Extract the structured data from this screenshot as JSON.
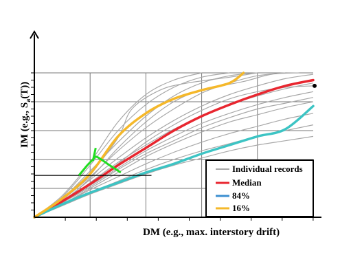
{
  "chart_data": {
    "type": "line",
    "xlabel_main": "DM (e.g., max. interstory drift)",
    "ylabel_parts": {
      "pre": "IM (e.g., S",
      "sub": "a",
      "post": "(T))"
    },
    "x_range": [
      0,
      1
    ],
    "y_range": [
      0,
      1
    ],
    "grid": true,
    "legend_position": "bottom-right",
    "colors": {
      "records": "#a8a8a8",
      "median": "#e8262f",
      "p84": "#3cc4c4",
      "p16": "#f5b82a",
      "distribution": "#22dd22"
    },
    "series": [
      {
        "name": "Individual records",
        "key": "records"
      },
      {
        "name": "Median",
        "key": "median",
        "points": [
          [
            0,
            0
          ],
          [
            0.1,
            0.11
          ],
          [
            0.2,
            0.23
          ],
          [
            0.3,
            0.36
          ],
          [
            0.4,
            0.48
          ],
          [
            0.5,
            0.6
          ],
          [
            0.6,
            0.7
          ],
          [
            0.7,
            0.78
          ],
          [
            0.8,
            0.85
          ],
          [
            0.9,
            0.91
          ],
          [
            1.0,
            0.95
          ]
        ]
      },
      {
        "name": "84%",
        "key": "p84",
        "points": [
          [
            0,
            0
          ],
          [
            0.1,
            0.09
          ],
          [
            0.2,
            0.17
          ],
          [
            0.3,
            0.24
          ],
          [
            0.4,
            0.31
          ],
          [
            0.5,
            0.37
          ],
          [
            0.6,
            0.44
          ],
          [
            0.7,
            0.5
          ],
          [
            0.8,
            0.56
          ],
          [
            0.9,
            0.61
          ],
          [
            1.0,
            0.77
          ]
        ]
      },
      {
        "name": "16%",
        "key": "p16",
        "points": [
          [
            0,
            0
          ],
          [
            0.1,
            0.13
          ],
          [
            0.2,
            0.3
          ],
          [
            0.3,
            0.56
          ],
          [
            0.4,
            0.72
          ],
          [
            0.5,
            0.82
          ],
          [
            0.6,
            0.88
          ],
          [
            0.7,
            0.93
          ],
          [
            0.75,
            1.0
          ]
        ]
      }
    ],
    "records": [
      [
        [
          0,
          0
        ],
        [
          0.1,
          0.15
        ],
        [
          0.2,
          0.38
        ],
        [
          0.3,
          0.66
        ],
        [
          0.4,
          0.85
        ],
        [
          0.5,
          0.95
        ],
        [
          0.6,
          1.0
        ]
      ],
      [
        [
          0,
          0
        ],
        [
          0.1,
          0.14
        ],
        [
          0.2,
          0.36
        ],
        [
          0.3,
          0.6
        ],
        [
          0.4,
          0.78
        ],
        [
          0.5,
          0.9
        ],
        [
          0.6,
          0.97
        ],
        [
          0.7,
          1.0
        ]
      ],
      [
        [
          0,
          0
        ],
        [
          0.1,
          0.13
        ],
        [
          0.2,
          0.32
        ],
        [
          0.3,
          0.52
        ],
        [
          0.4,
          0.7
        ],
        [
          0.5,
          0.84
        ],
        [
          0.6,
          0.93
        ],
        [
          0.7,
          0.98
        ],
        [
          0.8,
          1.0
        ]
      ],
      [
        [
          0,
          0
        ],
        [
          0.1,
          0.12
        ],
        [
          0.2,
          0.28
        ],
        [
          0.3,
          0.46
        ],
        [
          0.4,
          0.62
        ],
        [
          0.5,
          0.75
        ],
        [
          0.6,
          0.86
        ],
        [
          0.7,
          0.93
        ],
        [
          0.8,
          0.98
        ],
        [
          0.9,
          1.0
        ]
      ],
      [
        [
          0,
          0
        ],
        [
          0.1,
          0.11
        ],
        [
          0.2,
          0.26
        ],
        [
          0.3,
          0.41
        ],
        [
          0.4,
          0.55
        ],
        [
          0.5,
          0.67
        ],
        [
          0.6,
          0.77
        ],
        [
          0.7,
          0.85
        ],
        [
          0.8,
          0.91
        ],
        [
          0.9,
          0.96
        ],
        [
          1.0,
          0.99
        ]
      ],
      [
        [
          0,
          0
        ],
        [
          0.1,
          0.1
        ],
        [
          0.2,
          0.24
        ],
        [
          0.3,
          0.38
        ],
        [
          0.4,
          0.5
        ],
        [
          0.5,
          0.61
        ],
        [
          0.6,
          0.7
        ],
        [
          0.7,
          0.78
        ],
        [
          0.8,
          0.84
        ],
        [
          0.9,
          0.89
        ],
        [
          1.0,
          0.93
        ]
      ],
      [
        [
          0,
          0
        ],
        [
          0.1,
          0.1
        ],
        [
          0.2,
          0.22
        ],
        [
          0.3,
          0.34
        ],
        [
          0.4,
          0.46
        ],
        [
          0.5,
          0.56
        ],
        [
          0.6,
          0.65
        ],
        [
          0.7,
          0.72
        ],
        [
          0.8,
          0.78
        ],
        [
          0.9,
          0.83
        ],
        [
          1.0,
          0.87
        ]
      ],
      [
        [
          0,
          0
        ],
        [
          0.1,
          0.09
        ],
        [
          0.2,
          0.2
        ],
        [
          0.3,
          0.31
        ],
        [
          0.4,
          0.42
        ],
        [
          0.5,
          0.51
        ],
        [
          0.6,
          0.59
        ],
        [
          0.7,
          0.66
        ],
        [
          0.8,
          0.71
        ],
        [
          0.9,
          0.76
        ],
        [
          1.0,
          0.8
        ]
      ],
      [
        [
          0,
          0
        ],
        [
          0.1,
          0.09
        ],
        [
          0.2,
          0.19
        ],
        [
          0.3,
          0.28
        ],
        [
          0.4,
          0.37
        ],
        [
          0.5,
          0.45
        ],
        [
          0.6,
          0.52
        ],
        [
          0.7,
          0.58
        ],
        [
          0.8,
          0.63
        ],
        [
          0.9,
          0.68
        ],
        [
          1.0,
          0.72
        ]
      ],
      [
        [
          0,
          0
        ],
        [
          0.1,
          0.08
        ],
        [
          0.2,
          0.17
        ],
        [
          0.3,
          0.25
        ],
        [
          0.4,
          0.33
        ],
        [
          0.5,
          0.4
        ],
        [
          0.6,
          0.46
        ],
        [
          0.7,
          0.51
        ],
        [
          0.8,
          0.56
        ],
        [
          0.9,
          0.6
        ],
        [
          1.0,
          0.64
        ]
      ],
      [
        [
          0,
          0
        ],
        [
          0.1,
          0.08
        ],
        [
          0.2,
          0.16
        ],
        [
          0.3,
          0.23
        ],
        [
          0.4,
          0.3
        ],
        [
          0.5,
          0.36
        ],
        [
          0.6,
          0.41
        ],
        [
          0.7,
          0.46
        ],
        [
          0.8,
          0.5
        ],
        [
          0.9,
          0.53
        ],
        [
          1.0,
          0.56
        ]
      ],
      [
        [
          0,
          0
        ],
        [
          0.1,
          0.12
        ],
        [
          0.2,
          0.3
        ],
        [
          0.3,
          0.55
        ],
        [
          0.35,
          0.75
        ],
        [
          0.45,
          0.88
        ],
        [
          0.55,
          0.93
        ],
        [
          0.7,
          0.97
        ],
        [
          0.8,
          1.0
        ]
      ],
      [
        [
          0,
          0
        ],
        [
          0.1,
          0.11
        ],
        [
          0.2,
          0.27
        ],
        [
          0.3,
          0.48
        ],
        [
          0.4,
          0.66
        ],
        [
          0.5,
          0.8
        ],
        [
          0.6,
          0.88
        ],
        [
          0.75,
          0.94
        ],
        [
          0.85,
          0.99
        ],
        [
          0.95,
          1.0
        ]
      ],
      [
        [
          0,
          0
        ],
        [
          0.1,
          0.1
        ],
        [
          0.2,
          0.23
        ],
        [
          0.3,
          0.37
        ],
        [
          0.4,
          0.52
        ],
        [
          0.5,
          0.64
        ],
        [
          0.6,
          0.74
        ],
        [
          0.7,
          0.82
        ],
        [
          0.8,
          0.87
        ],
        [
          0.9,
          0.9
        ],
        [
          1.0,
          0.91
        ]
      ],
      [
        [
          0,
          0
        ],
        [
          0.1,
          0.1
        ],
        [
          0.2,
          0.21
        ],
        [
          0.3,
          0.33
        ],
        [
          0.4,
          0.44
        ],
        [
          0.5,
          0.53
        ],
        [
          0.6,
          0.62
        ],
        [
          0.7,
          0.69
        ],
        [
          0.8,
          0.75
        ],
        [
          0.9,
          0.79
        ],
        [
          1.0,
          0.83
        ]
      ]
    ],
    "distribution_curve": [
      [
        0.16,
        0.29
      ],
      [
        0.19,
        0.36
      ],
      [
        0.21,
        0.4
      ],
      [
        0.22,
        0.42
      ],
      [
        0.24,
        0.4
      ],
      [
        0.27,
        0.36
      ],
      [
        0.31,
        0.31
      ]
    ],
    "distribution_tick": [
      [
        0.21,
        0.39
      ],
      [
        0.22,
        0.48
      ]
    ],
    "reference_line_y": 0.29,
    "reference_line_x_end": 0.42
  }
}
